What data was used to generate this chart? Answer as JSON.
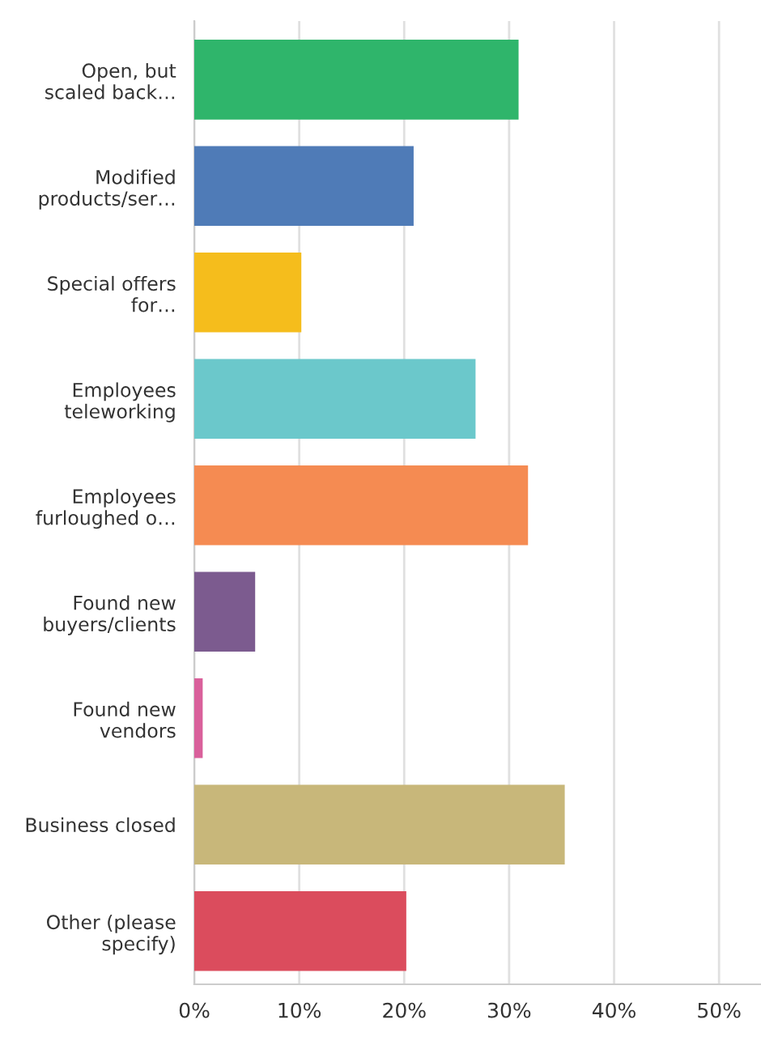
{
  "chart_data": {
    "type": "bar",
    "orientation": "horizontal",
    "categories": [
      "Open, but\nscaled back…",
      "Modified\nproducts/ser…",
      "Special offers\nfor…",
      "Employees\nteleworking",
      "Employees\nfurloughed o…",
      "Found new\nbuyers/clients",
      "Found new\nvendors",
      "Business closed",
      "Other (please\nspecify)"
    ],
    "values": [
      30.9,
      20.9,
      10.2,
      26.8,
      31.8,
      5.8,
      0.8,
      35.3,
      20.2
    ],
    "colors": [
      "#2fb56b",
      "#4f7bb7",
      "#f5bd1c",
      "#6bc8cb",
      "#f58b52",
      "#7c5b8f",
      "#d9609b",
      "#c8b77a",
      "#db4c5d"
    ],
    "xlim": [
      0,
      54
    ],
    "xticks": [
      {
        "value": 0,
        "label": "0%"
      },
      {
        "value": 10,
        "label": "10%"
      },
      {
        "value": 20,
        "label": "20%"
      },
      {
        "value": 30,
        "label": "30%"
      },
      {
        "value": 40,
        "label": "40%"
      },
      {
        "value": 50,
        "label": "50%"
      }
    ],
    "grid": "x",
    "legend": false
  }
}
